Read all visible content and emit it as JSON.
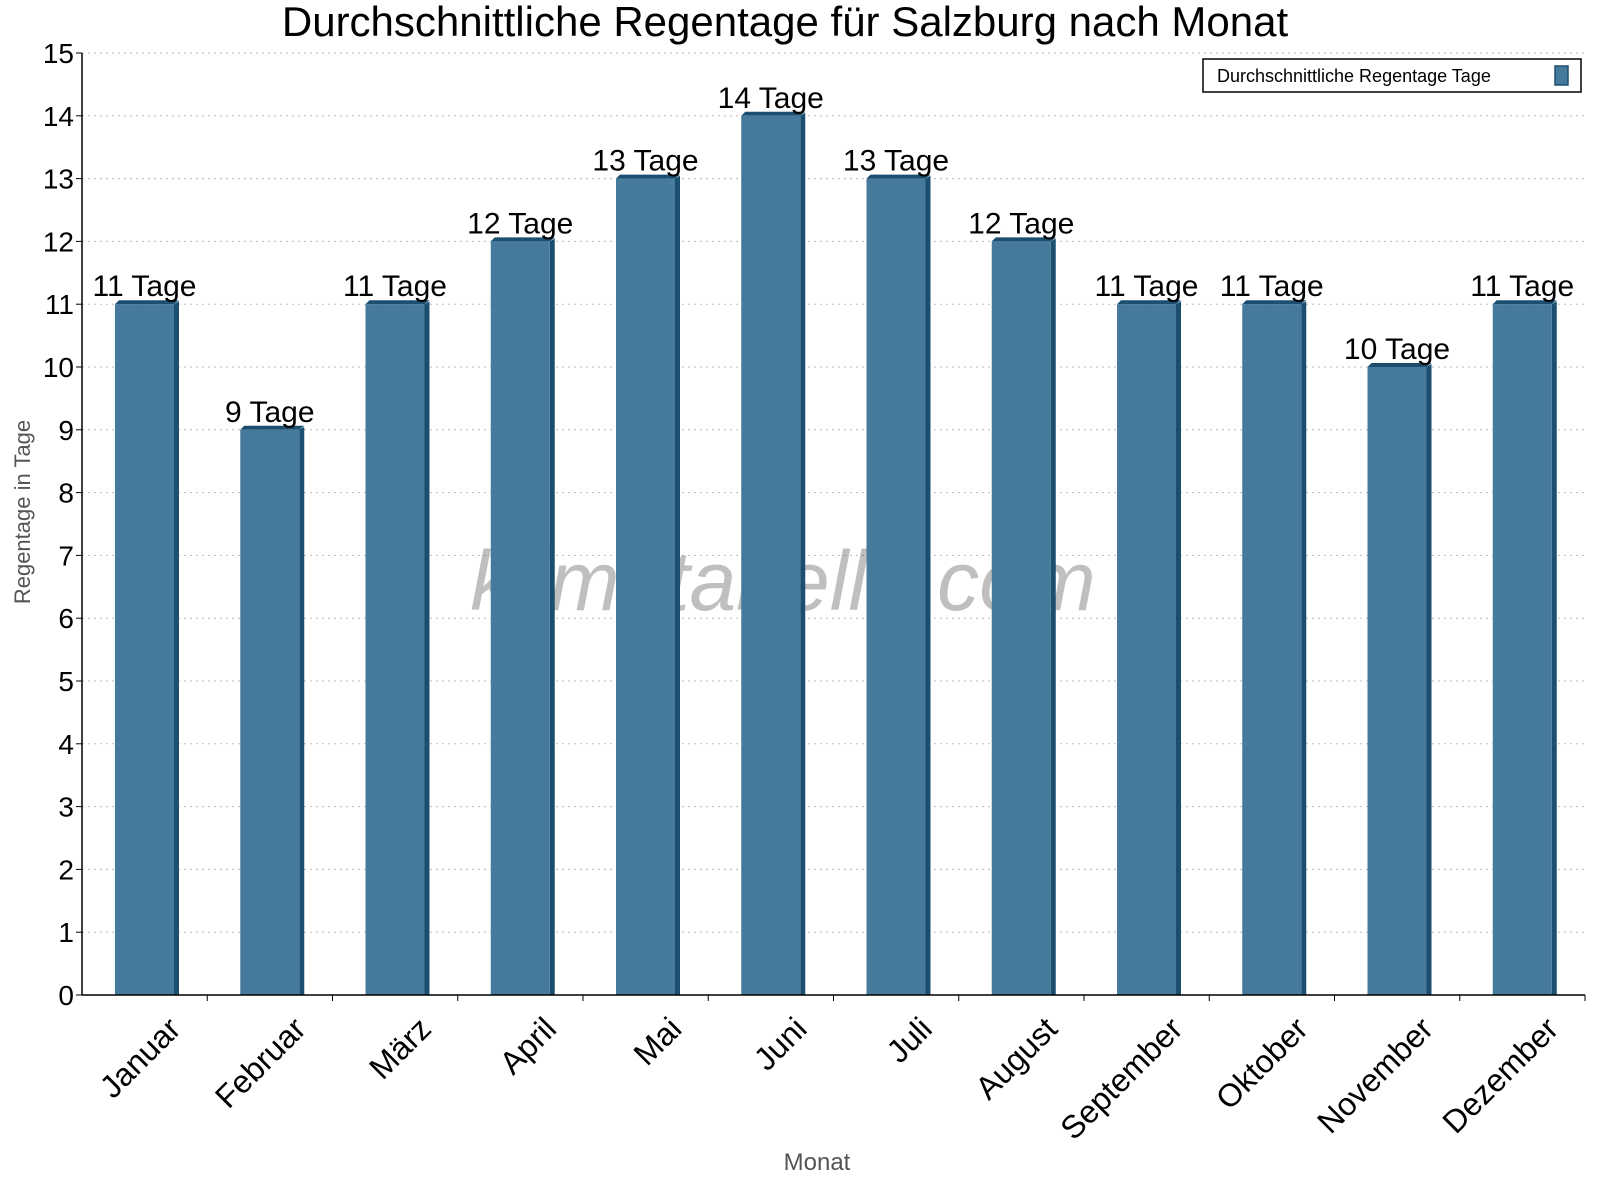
{
  "chart_data": {
    "type": "bar",
    "title": "Durchschnittliche Regentage für Salzburg nach Monat",
    "xlabel": "Monat",
    "ylabel": "Regentage in Tage",
    "ylim": [
      0,
      15
    ],
    "yticks": [
      0,
      1,
      2,
      3,
      4,
      5,
      6,
      7,
      8,
      9,
      10,
      11,
      12,
      13,
      14,
      15
    ],
    "grid": true,
    "legend": {
      "position": "top-right",
      "entries": [
        "Durchschnittliche Regentage Tage"
      ]
    },
    "categories": [
      "Januar",
      "Februar",
      "März",
      "April",
      "Mai",
      "Juni",
      "Juli",
      "August",
      "September",
      "Oktober",
      "November",
      "Dezember"
    ],
    "series": [
      {
        "name": "Durchschnittliche Regentage Tage",
        "values": [
          11,
          9,
          11,
          12,
          13,
          14,
          13,
          12,
          11,
          11,
          10,
          11
        ],
        "color": "#467a9c",
        "edge_color": "#1c4e70"
      }
    ],
    "value_suffix": " Tage",
    "watermark": "klimatabelle.com"
  }
}
